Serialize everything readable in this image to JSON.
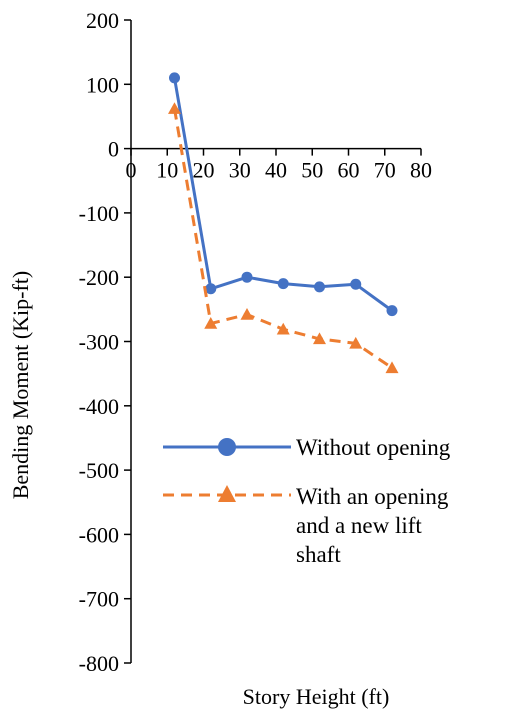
{
  "chart_data": {
    "type": "line",
    "xlabel": "Story Height (ft)",
    "ylabel": "Bending Moment (Kip-ft)",
    "xlim": [
      0,
      80
    ],
    "ylim": [
      -800,
      200
    ],
    "xticks": [
      0,
      10,
      20,
      30,
      40,
      50,
      60,
      70,
      80
    ],
    "yticks": [
      200,
      100,
      0,
      -100,
      -200,
      -300,
      -400,
      -500,
      -600,
      -700,
      -800
    ],
    "grid": false,
    "legend_position": "bottom-right",
    "series": [
      {
        "name": "Without opening",
        "color": "#4472C4",
        "line_style": "solid",
        "marker": "circle",
        "x": [
          12,
          22,
          32,
          42,
          52,
          62,
          72
        ],
        "y": [
          110,
          -218,
          -200,
          -210,
          -215,
          -211,
          -252
        ]
      },
      {
        "name": "With an opening and a new lift shaft",
        "legend_lines": [
          "With an opening",
          "and a new lift",
          "shaft"
        ],
        "color": "#ED7D31",
        "line_style": "dashed",
        "marker": "triangle",
        "x": [
          12,
          22,
          32,
          42,
          52,
          62,
          72
        ],
        "y": [
          62,
          -272,
          -258,
          -281,
          -296,
          -303,
          -341
        ]
      }
    ]
  }
}
